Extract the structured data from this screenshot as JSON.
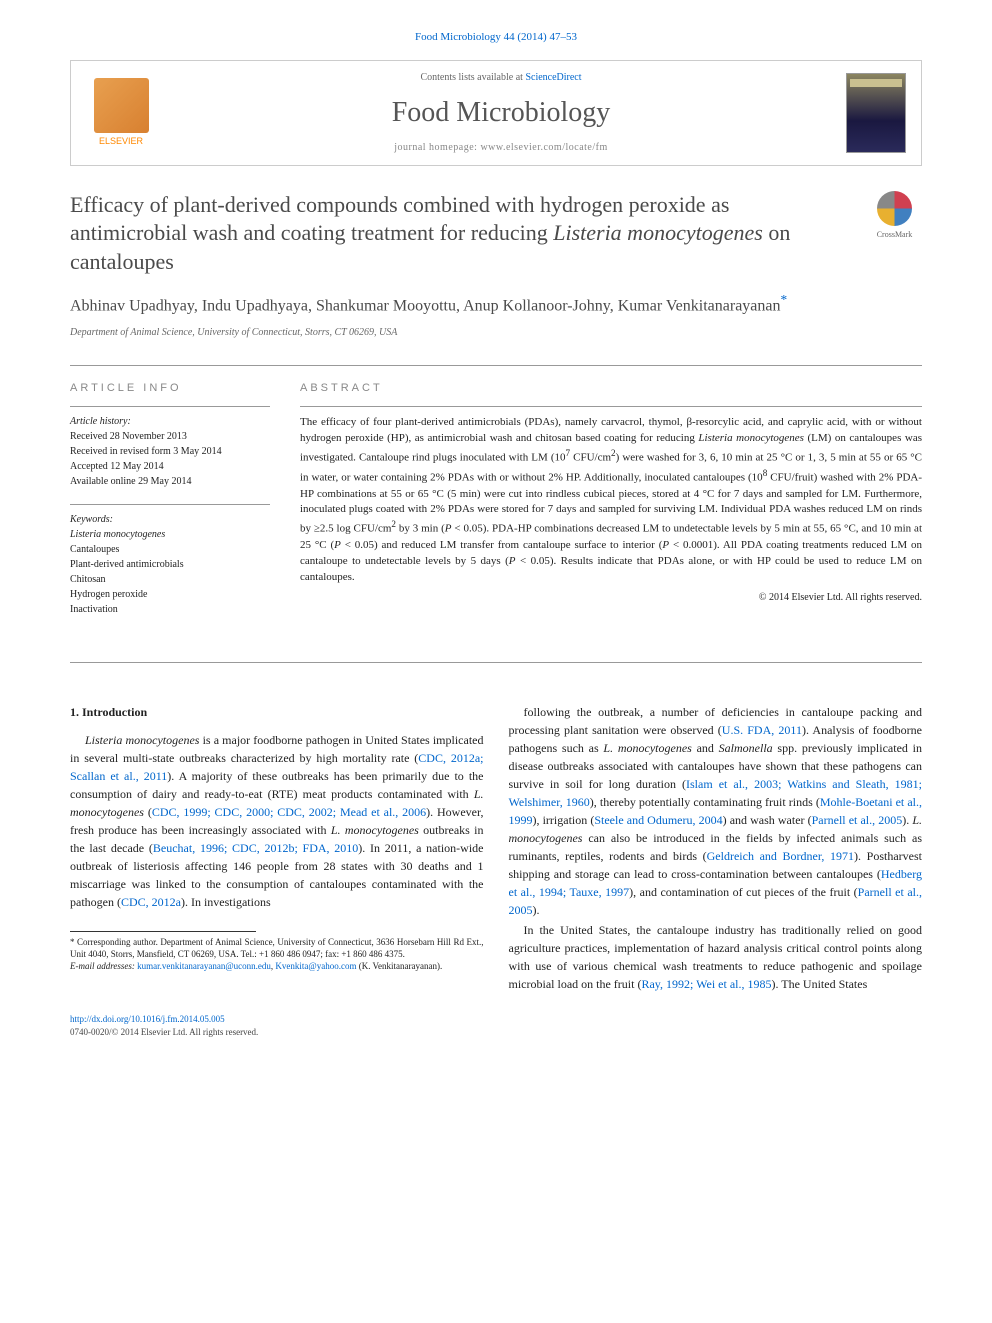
{
  "journal_ref": "Food Microbiology 44 (2014) 47–53",
  "header": {
    "publisher": "ELSEVIER",
    "contents_prefix": "Contents lists available at ",
    "contents_link": "ScienceDirect",
    "journal_name": "Food Microbiology",
    "homepage_label": "journal homepage: ",
    "homepage_url": "www.elsevier.com/locate/fm",
    "cover_label": "Food Microbiology"
  },
  "title_html": "Efficacy of plant-derived compounds combined with hydrogen peroxide as antimicrobial wash and coating treatment for reducing <em>Listeria monocytogenes</em> on cantaloupes",
  "crossmark": "CrossMark",
  "authors": "Abhinav Upadhyay, Indu Upadhyaya, Shankumar Mooyottu, Anup Kollanoor-Johny, Kumar Venkitanarayanan",
  "corr_mark": "*",
  "affiliation": "Department of Animal Science, University of Connecticut, Storrs, CT 06269, USA",
  "article_info": {
    "heading": "ARTICLE INFO",
    "history_label": "Article history:",
    "received": "Received 28 November 2013",
    "revised": "Received in revised form 3 May 2014",
    "accepted": "Accepted 12 May 2014",
    "online": "Available online 29 May 2014",
    "keywords_label": "Keywords:",
    "keywords": [
      "Listeria monocytogenes",
      "Cantaloupes",
      "Plant-derived antimicrobials",
      "Chitosan",
      "Hydrogen peroxide",
      "Inactivation"
    ]
  },
  "abstract": {
    "heading": "ABSTRACT",
    "text_html": "The efficacy of four plant-derived antimicrobials (PDAs), namely carvacrol, thymol, β-resorcylic acid, and caprylic acid, with or without hydrogen peroxide (HP), as antimicrobial wash and chitosan based coating for reducing <em>Listeria monocytogenes</em> (LM) on cantaloupes was investigated. Cantaloupe rind plugs inoculated with LM (10<sup>7</sup> CFU/cm<sup>2</sup>) were washed for 3, 6, 10 min at 25 °C or 1, 3, 5 min at 55 or 65 °C in water, or water containing 2% PDAs with or without 2% HP. Additionally, inoculated cantaloupes (10<sup>8</sup> CFU/fruit) washed with 2% PDA-HP combinations at 55 or 65 °C (5 min) were cut into rindless cubical pieces, stored at 4 °C for 7 days and sampled for LM. Furthermore, inoculated plugs coated with 2% PDAs were stored for 7 days and sampled for surviving LM. Individual PDA washes reduced LM on rinds by ≥2.5 log CFU/cm<sup>2</sup> by 3 min (<em>P</em> &lt; 0.05). PDA-HP combinations decreased LM to undetectable levels by 5 min at 55, 65 °C, and 10 min at 25 °C (<em>P</em> &lt; 0.05) and reduced LM transfer from cantaloupe surface to interior (<em>P</em> &lt; 0.0001). All PDA coating treatments reduced LM on cantaloupe to undetectable levels by 5 days (<em>P</em> &lt; 0.05). Results indicate that PDAs alone, or with HP could be used to reduce LM on cantaloupes.",
    "copyright": "© 2014 Elsevier Ltd. All rights reserved."
  },
  "body": {
    "section_heading": "1. Introduction",
    "col1_p1_html": "<em>Listeria monocytogenes</em> is a major foodborne pathogen in United States implicated in several multi-state outbreaks characterized by high mortality rate (<a class=\"ref\">CDC, 2012a; Scallan et al., 2011</a>). A majority of these outbreaks has been primarily due to the consumption of dairy and ready-to-eat (RTE) meat products contaminated with <em>L. monocytogenes</em> (<a class=\"ref\">CDC, 1999; CDC, 2000; CDC, 2002; Mead et al., 2006</a>). However, fresh produce has been increasingly associated with <em>L. monocytogenes</em> outbreaks in the last decade (<a class=\"ref\">Beuchat, 1996; CDC, 2012b; FDA, 2010</a>). In 2011, a nation-wide outbreak of listeriosis affecting 146 people from 28 states with 30 deaths and 1 miscarriage was linked to the consumption of cantaloupes contaminated with the pathogen (<a class=\"ref\">CDC, 2012a</a>). In investigations",
    "col2_p1_html": "following the outbreak, a number of deficiencies in cantaloupe packing and processing plant sanitation were observed (<a class=\"ref\">U.S. FDA, 2011</a>). Analysis of foodborne pathogens such as <em>L. monocytogenes</em> and <em>Salmonella</em> spp. previously implicated in disease outbreaks associated with cantaloupes have shown that these pathogens can survive in soil for long duration (<a class=\"ref\">Islam et al., 2003; Watkins and Sleath, 1981; Welshimer, 1960</a>), thereby potentially contaminating fruit rinds (<a class=\"ref\">Mohle-Boetani et al., 1999</a>), irrigation (<a class=\"ref\">Steele and Odumeru, 2004</a>) and wash water (<a class=\"ref\">Parnell et al., 2005</a>). <em>L. monocytogenes</em> can also be introduced in the fields by infected animals such as ruminants, reptiles, rodents and birds (<a class=\"ref\">Geldreich and Bordner, 1971</a>). Postharvest shipping and storage can lead to cross-contamination between cantaloupes (<a class=\"ref\">Hedberg et al., 1994; Tauxe, 1997</a>), and contamination of cut pieces of the fruit (<a class=\"ref\">Parnell et al., 2005</a>).",
    "col2_p2_html": "In the United States, the cantaloupe industry has traditionally relied on good agriculture practices, implementation of hazard analysis critical control points along with use of various chemical wash treatments to reduce pathogenic and spoilage microbial load on the fruit (<a class=\"ref\">Ray, 1992; Wei et al., 1985</a>). The United States"
  },
  "footnotes": {
    "corr_html": "* Corresponding author. Department of Animal Science, University of Connecticut, 3636 Horsebarn Hill Rd Ext., Unit 4040, Storrs, Mansfield, CT 06269, USA. Tel.: +1 860 486 0947; fax: +1 860 486 4375.",
    "email_label": "E-mail addresses:",
    "email1": "kumar.venkitanarayanan@uconn.edu",
    "email2": "Kvenkita@yahoo.com",
    "email_suffix": "(K. Venkitanarayanan)."
  },
  "footer": {
    "doi": "http://dx.doi.org/10.1016/j.fm.2014.05.005",
    "issn_copyright": "0740-0020/© 2014 Elsevier Ltd. All rights reserved."
  },
  "colors": {
    "link": "#0066cc",
    "heading_gray": "#888888",
    "text": "#222222"
  }
}
